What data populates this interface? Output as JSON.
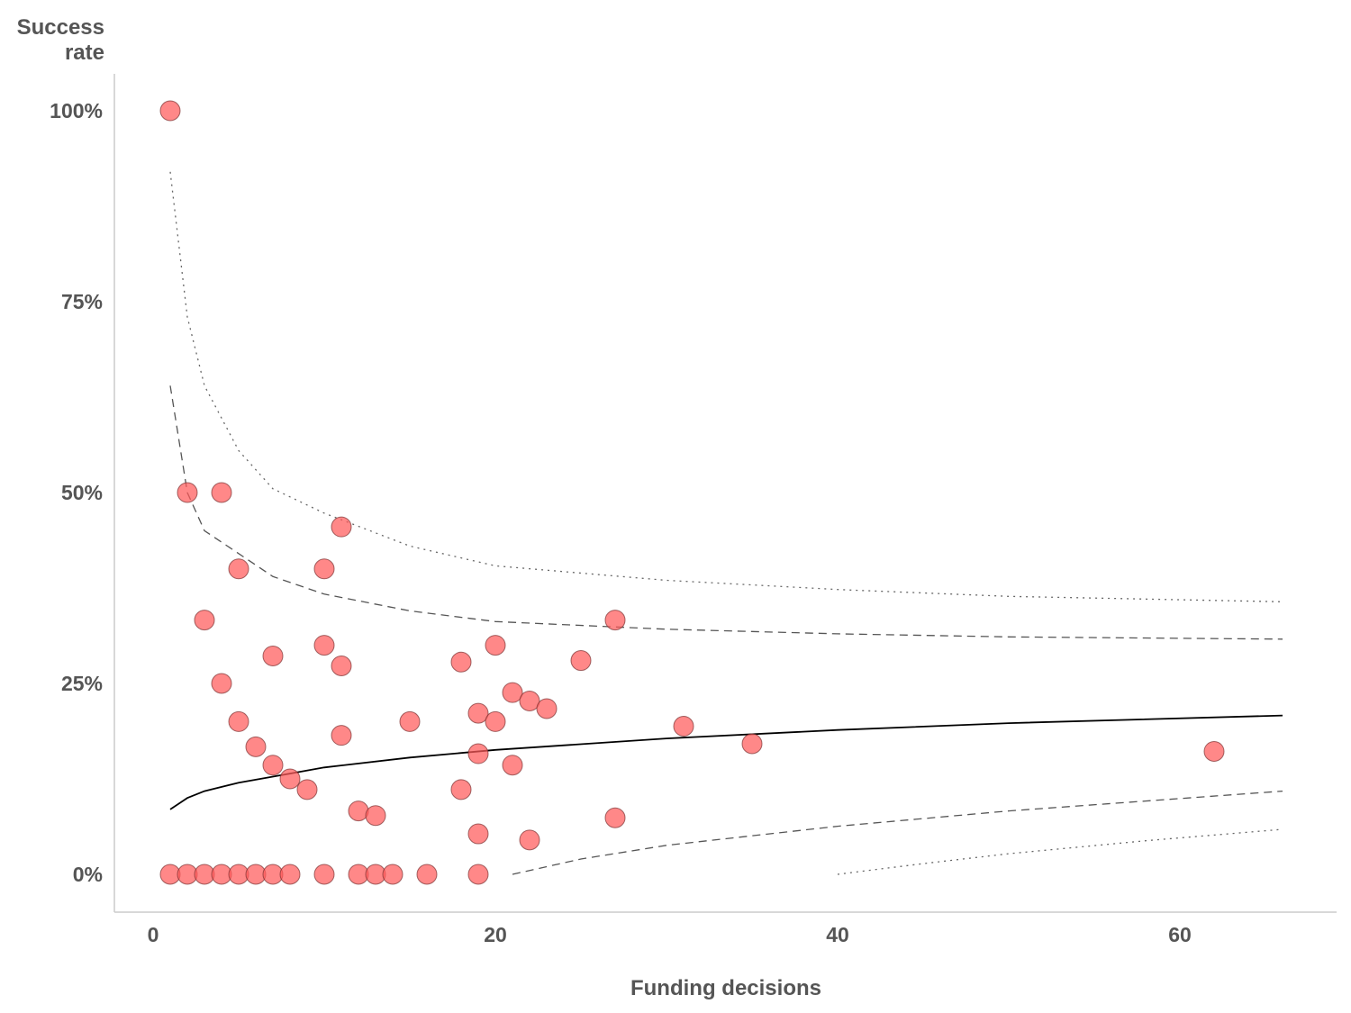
{
  "chart_data": {
    "type": "scatter",
    "title": "",
    "xlabel": "Funding decisions",
    "ylabel": [
      "Success",
      "rate"
    ],
    "xlim": [
      -1,
      69
    ],
    "ylim": [
      -5,
      105
    ],
    "xticks": [
      0,
      20,
      40,
      60
    ],
    "xtick_labels": [
      "0",
      "20",
      "40",
      "60"
    ],
    "yticks": [
      0,
      25,
      50,
      75,
      100
    ],
    "ytick_labels": [
      "0%",
      "25%",
      "50%",
      "75%",
      "100%"
    ],
    "grid": false,
    "point_color": "#ff5a5a",
    "points": [
      [
        1,
        0
      ],
      [
        2,
        0
      ],
      [
        3,
        0
      ],
      [
        4,
        0
      ],
      [
        5,
        0
      ],
      [
        6,
        0
      ],
      [
        7,
        0
      ],
      [
        8,
        0
      ],
      [
        10,
        0
      ],
      [
        12,
        0
      ],
      [
        13,
        0
      ],
      [
        14,
        0
      ],
      [
        16,
        0
      ],
      [
        19,
        0
      ],
      [
        1,
        100
      ],
      [
        2,
        50
      ],
      [
        4,
        50
      ],
      [
        11,
        45.5
      ],
      [
        5,
        40
      ],
      [
        10,
        40
      ],
      [
        3,
        33.3
      ],
      [
        27,
        33.3
      ],
      [
        7,
        28.6
      ],
      [
        10,
        30
      ],
      [
        11,
        27.3
      ],
      [
        20,
        30
      ],
      [
        18,
        27.8
      ],
      [
        25,
        28
      ],
      [
        4,
        25
      ],
      [
        21,
        23.8
      ],
      [
        22,
        22.7
      ],
      [
        23,
        21.7
      ],
      [
        19,
        21.1
      ],
      [
        5,
        20
      ],
      [
        15,
        20
      ],
      [
        20,
        20
      ],
      [
        31,
        19.4
      ],
      [
        11,
        18.2
      ],
      [
        35,
        17.1
      ],
      [
        6,
        16.7
      ],
      [
        62,
        16.1
      ],
      [
        19,
        15.8
      ],
      [
        7,
        14.3
      ],
      [
        21,
        14.3
      ],
      [
        8,
        12.5
      ],
      [
        9,
        11.1
      ],
      [
        18,
        11.1
      ],
      [
        12,
        8.3
      ],
      [
        13,
        7.7
      ],
      [
        27,
        7.4
      ],
      [
        19,
        5.3
      ],
      [
        22,
        4.5
      ]
    ],
    "lines": [
      {
        "style": "solid",
        "points": [
          [
            1,
            8.5
          ],
          [
            2,
            10
          ],
          [
            3,
            10.9
          ],
          [
            5,
            12
          ],
          [
            8,
            13.2
          ],
          [
            10,
            14
          ],
          [
            15,
            15.3
          ],
          [
            20,
            16.3
          ],
          [
            30,
            17.8
          ],
          [
            40,
            18.9
          ],
          [
            50,
            19.8
          ],
          [
            66,
            20.8
          ]
        ]
      },
      {
        "style": "dashed",
        "points": [
          [
            1,
            64
          ],
          [
            2,
            50
          ],
          [
            3,
            45
          ],
          [
            5,
            42
          ],
          [
            7,
            39
          ],
          [
            10,
            36.7
          ],
          [
            15,
            34.5
          ],
          [
            20,
            33.1
          ],
          [
            30,
            32.1
          ],
          [
            40,
            31.5
          ],
          [
            50,
            31.1
          ],
          [
            66,
            30.8
          ]
        ]
      },
      {
        "style": "dotted",
        "points": [
          [
            1,
            92
          ],
          [
            2,
            73
          ],
          [
            3,
            64
          ],
          [
            5,
            55.5
          ],
          [
            7,
            50.5
          ],
          [
            10,
            47.3
          ],
          [
            15,
            43
          ],
          [
            20,
            40.4
          ],
          [
            30,
            38.5
          ],
          [
            40,
            37.3
          ],
          [
            50,
            36.4
          ],
          [
            66,
            35.7
          ]
        ]
      },
      {
        "style": "dashed",
        "points": [
          [
            21,
            0
          ],
          [
            25,
            2
          ],
          [
            30,
            3.8
          ],
          [
            40,
            6.3
          ],
          [
            50,
            8.3
          ],
          [
            66,
            10.9
          ]
        ]
      },
      {
        "style": "dotted",
        "points": [
          [
            40,
            0
          ],
          [
            45,
            1.4
          ],
          [
            50,
            2.7
          ],
          [
            58,
            4.4
          ],
          [
            66,
            5.9
          ]
        ]
      }
    ]
  }
}
